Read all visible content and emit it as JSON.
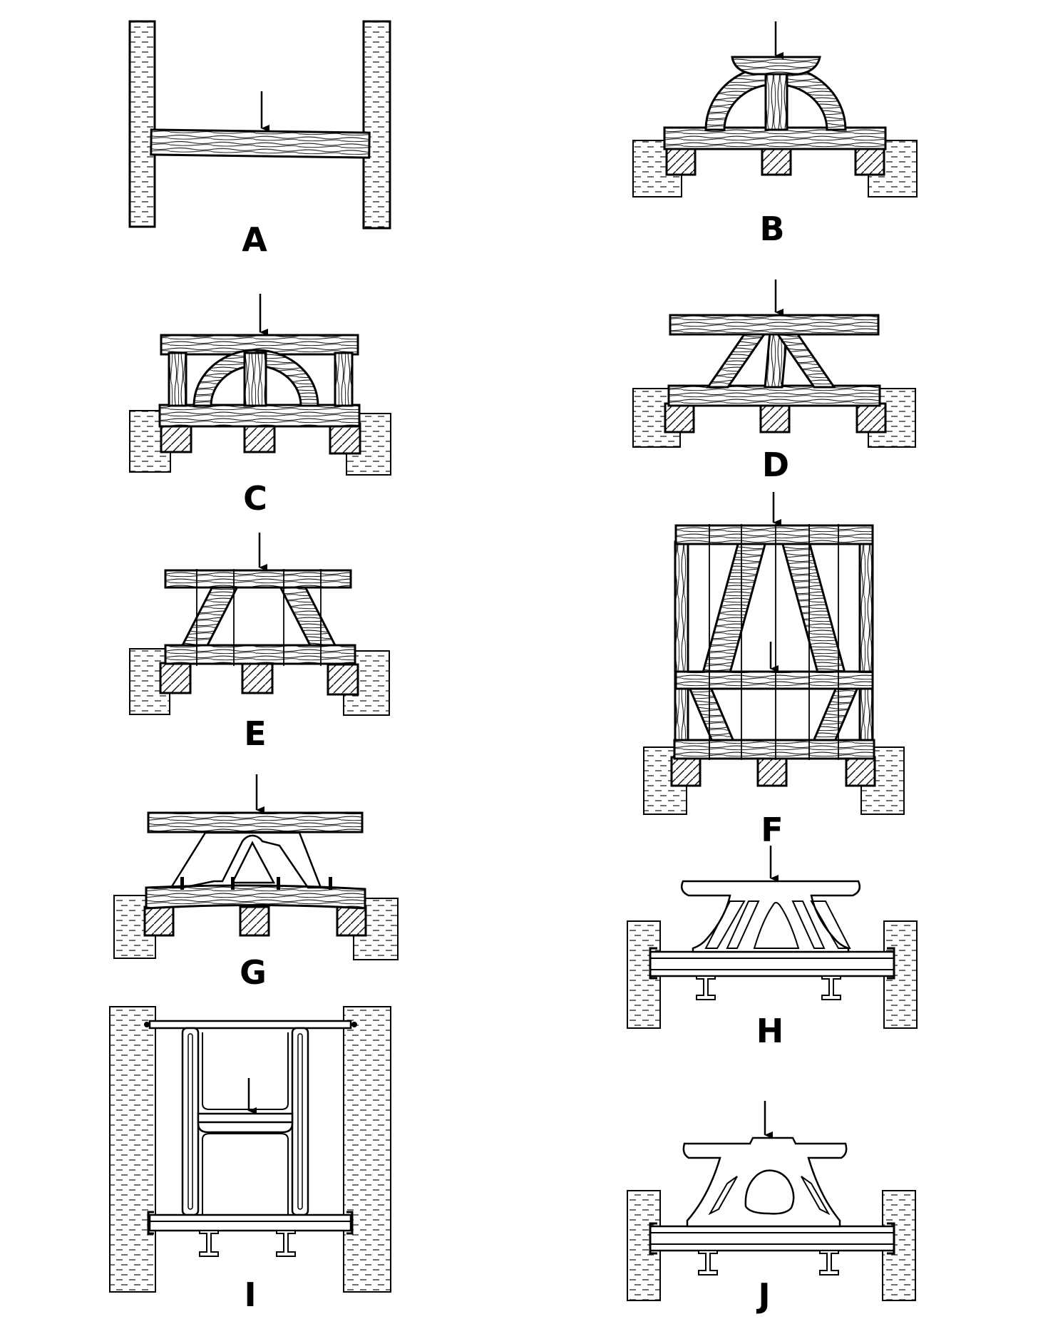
{
  "panels": [
    {
      "id": "A",
      "label": "A"
    },
    {
      "id": "B",
      "label": "B"
    },
    {
      "id": "C",
      "label": "C"
    },
    {
      "id": "D",
      "label": "D"
    },
    {
      "id": "E",
      "label": "E"
    },
    {
      "id": "F",
      "label": "F"
    },
    {
      "id": "G",
      "label": "G"
    },
    {
      "id": "H",
      "label": "H"
    },
    {
      "id": "I",
      "label": "I"
    },
    {
      "id": "J",
      "label": "J"
    }
  ]
}
